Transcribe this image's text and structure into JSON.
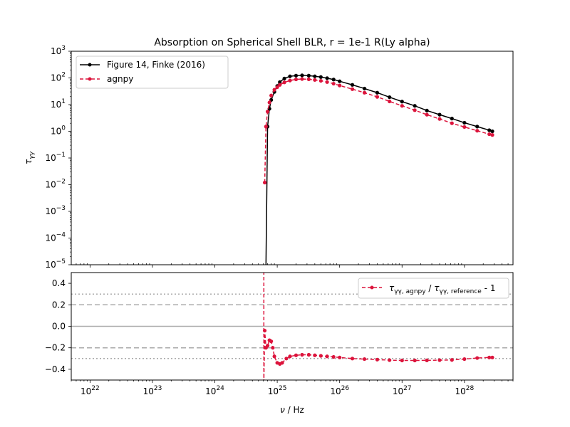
{
  "chart_data": [
    {
      "type": "line",
      "title": "Absorption on Spherical Shell BLR, r = 1e-1 R(Ly alpha)",
      "xlabel": "",
      "ylabel": "τ_γγ",
      "xscale": "log",
      "yscale": "log",
      "xlim": [
        5e+21,
        6e+28
      ],
      "ylim": [
        1e-05,
        1000
      ],
      "x_tick_labels": [
        "10^22",
        "10^23",
        "10^24",
        "10^25",
        "10^26",
        "10^27",
        "10^28"
      ],
      "y_tick_labels": [
        "10^-5",
        "10^-4",
        "10^-3",
        "10^-2",
        "10^-1",
        "10^0",
        "10^1",
        "10^2",
        "10^3"
      ],
      "legend_position": "upper-left",
      "series": [
        {
          "name": "Figure 14, Finke (2016)",
          "color": "#000000",
          "linestyle": "solid",
          "marker": "dot",
          "x": [
            6.6e+24,
            7e+24,
            7.5e+24,
            8e+24,
            9e+24,
            1e+25,
            1.1e+25,
            1.3e+25,
            1.6e+25,
            2e+25,
            2.5e+25,
            3.2e+25,
            4e+25,
            5e+25,
            6.3e+25,
            8e+25,
            1e+26,
            1.6e+26,
            2.5e+26,
            4e+26,
            6.3e+26,
            1e+27,
            1.6e+27,
            2.5e+27,
            4e+27,
            6.3e+27,
            1e+28,
            1.6e+28,
            2.5e+28,
            2.8e+28
          ],
          "y": [
            1e-05,
            1.5,
            7,
            15,
            30,
            50,
            70,
            95,
            115,
            122,
            125,
            122,
            115,
            108,
            98,
            87,
            75,
            55,
            40,
            28,
            19,
            13,
            9,
            6,
            4.2,
            3.0,
            2.1,
            1.5,
            1.1,
            1.0
          ]
        },
        {
          "name": "agnpy",
          "color": "#dc143c",
          "linestyle": "dashed",
          "marker": "dot",
          "x": [
            6.3e+24,
            6.6e+24,
            7e+24,
            7.5e+24,
            8e+24,
            9e+24,
            1e+25,
            1.1e+25,
            1.3e+25,
            1.6e+25,
            2e+25,
            2.5e+25,
            3.2e+25,
            4e+25,
            5e+25,
            6.3e+25,
            8e+25,
            1e+26,
            1.6e+26,
            2.5e+26,
            4e+26,
            6.3e+26,
            1e+27,
            1.6e+27,
            2.5e+27,
            4e+27,
            6.3e+27,
            1e+28,
            1.6e+28,
            2.5e+28,
            2.8e+28
          ],
          "y": [
            0.012,
            1.5,
            5.5,
            12,
            22,
            36,
            45,
            55,
            68,
            80,
            88,
            91,
            89,
            84,
            78,
            70,
            61,
            52,
            38,
            28,
            19.5,
            13.2,
            9,
            6.2,
            4.2,
            2.9,
            2.0,
            1.45,
            1.05,
            0.78,
            0.73
          ]
        }
      ]
    },
    {
      "type": "line",
      "title": "",
      "xlabel": "ν / Hz",
      "ylabel": "",
      "xscale": "log",
      "xlim": [
        5e+21,
        6e+28
      ],
      "ylim": [
        -0.5,
        0.5
      ],
      "x_tick_labels": [
        "10^22",
        "10^23",
        "10^24",
        "10^25",
        "10^26",
        "10^27",
        "10^28"
      ],
      "y_tick_labels": [
        "−0.4",
        "−0.2",
        "0.0",
        "0.2",
        "0.4"
      ],
      "y_ticks": [
        -0.4,
        -0.2,
        0.0,
        0.2,
        0.4
      ],
      "legend_position": "upper-right",
      "reference_lines": [
        {
          "y": 0.0,
          "style": "solid",
          "color": "#aaaaaa"
        },
        {
          "y": 0.2,
          "style": "dashed",
          "color": "#aaaaaa"
        },
        {
          "y": -0.2,
          "style": "dashed",
          "color": "#aaaaaa"
        },
        {
          "y": 0.3,
          "style": "dotted",
          "color": "#aaaaaa"
        },
        {
          "y": -0.3,
          "style": "dotted",
          "color": "#aaaaaa"
        }
      ],
      "series": [
        {
          "name": "τγγ, agnpy / τγγ, reference - 1",
          "color": "#dc143c",
          "linestyle": "dashed",
          "marker": "dot",
          "x": [
            6.1e+24,
            6.3e+24,
            6.6e+24,
            7e+24,
            7.5e+24,
            8e+24,
            8.5e+24,
            9e+24,
            1e+25,
            1.1e+25,
            1.2e+25,
            1.4e+25,
            1.6e+25,
            2e+25,
            2.5e+25,
            3.2e+25,
            4e+25,
            5e+25,
            6.3e+25,
            8e+25,
            1e+26,
            1.6e+26,
            2.5e+26,
            4e+26,
            6.3e+26,
            1e+27,
            1.6e+27,
            2.5e+27,
            4e+27,
            6.3e+27,
            1e+28,
            1.6e+28,
            2.5e+28,
            2.8e+28
          ],
          "y": [
            0.5,
            -0.04,
            -0.2,
            -0.18,
            -0.13,
            -0.14,
            -0.2,
            -0.28,
            -0.34,
            -0.35,
            -0.34,
            -0.3,
            -0.28,
            -0.27,
            -0.265,
            -0.265,
            -0.27,
            -0.275,
            -0.28,
            -0.285,
            -0.29,
            -0.3,
            -0.305,
            -0.31,
            -0.315,
            -0.318,
            -0.318,
            -0.317,
            -0.315,
            -0.313,
            -0.305,
            -0.295,
            -0.29,
            -0.29
          ]
        }
      ]
    }
  ]
}
